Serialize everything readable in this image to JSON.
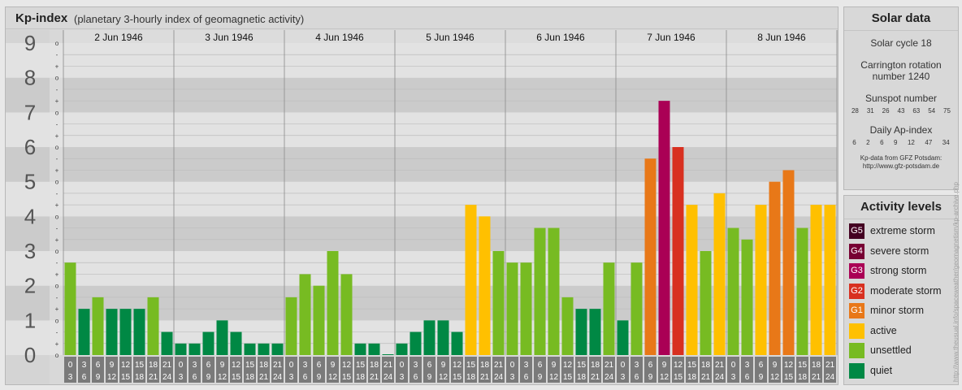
{
  "header": {
    "title": "Kp-index",
    "subtitle": "(planetary 3-hourly index of geomagnetic activity)"
  },
  "colors": {
    "quiet": "#008844",
    "unsettled": "#77bb22",
    "active": "#ffc000",
    "minor_storm": "#e87818",
    "moderate_storm": "#d83020",
    "strong_storm": "#aa0055",
    "severe_storm": "#770033",
    "extreme_storm": "#440022"
  },
  "chart_data": {
    "type": "bar",
    "title": "Kp-index",
    "ylim": [
      0,
      9
    ],
    "y_ticks": [
      "0",
      "1",
      "2",
      "3",
      "4",
      "5",
      "6",
      "7",
      "8",
      "9"
    ],
    "y_subticks": [
      "+",
      "o",
      "-"
    ],
    "days": [
      "2 Jun 1946",
      "3 Jun 1946",
      "4 Jun 1946",
      "5 Jun 1946",
      "6 Jun 1946",
      "7 Jun 1946",
      "8 Jun 1946"
    ],
    "hour_labels_top": [
      "0",
      "3",
      "6",
      "9",
      "12",
      "15",
      "18",
      "21"
    ],
    "hour_labels_bottom": [
      "3",
      "6",
      "9",
      "12",
      "15",
      "18",
      "21",
      "24"
    ],
    "values": [
      [
        2.667,
        1.333,
        1.667,
        1.333,
        1.333,
        1.333,
        1.667,
        0.667
      ],
      [
        0.333,
        0.333,
        0.667,
        1.0,
        0.667,
        0.333,
        0.333,
        0.333
      ],
      [
        1.667,
        2.333,
        2.0,
        3.0,
        2.333,
        0.333,
        0.333,
        0.0
      ],
      [
        0.333,
        0.667,
        1.0,
        1.0,
        0.667,
        4.333,
        4.0,
        3.0
      ],
      [
        2.667,
        2.667,
        3.667,
        3.667,
        1.667,
        1.333,
        1.333,
        2.667
      ],
      [
        1.0,
        2.667,
        5.667,
        7.333,
        6.0,
        4.333,
        3.0,
        4.667
      ],
      [
        3.667,
        3.333,
        4.333,
        5.0,
        5.333,
        3.667,
        4.333,
        4.333
      ]
    ]
  },
  "solar": {
    "title": "Solar data",
    "cycle": "Solar cycle 18",
    "carrington_line1": "Carrington rotation",
    "carrington_line2": "number 1240",
    "sunspot_label": "Sunspot number",
    "sunspot_values": [
      "28",
      "31",
      "26",
      "43",
      "63",
      "54",
      "75"
    ],
    "ap_label": "Daily Ap-index",
    "ap_values": [
      "6",
      "2",
      "6",
      "9",
      "12",
      "47",
      "34"
    ],
    "source_line1": "Kp-data from GFZ Potsdam:",
    "source_line2": "http://www.gfz-potsdam.de"
  },
  "levels": {
    "title": "Activity levels",
    "items": [
      {
        "badge": "G5",
        "label": "extreme storm",
        "color": "#440022"
      },
      {
        "badge": "G4",
        "label": "severe storm",
        "color": "#770033"
      },
      {
        "badge": "G3",
        "label": "strong storm",
        "color": "#aa0055"
      },
      {
        "badge": "G2",
        "label": "moderate storm",
        "color": "#d83020"
      },
      {
        "badge": "G1",
        "label": "minor storm",
        "color": "#e87818"
      },
      {
        "badge": "",
        "label": "active",
        "color": "#ffc000"
      },
      {
        "badge": "",
        "label": "unsettled",
        "color": "#77bb22"
      },
      {
        "badge": "",
        "label": "quiet",
        "color": "#008844"
      }
    ]
  },
  "credit": "http://www.theusual.info/spaceweather/geomagnetism/kp-archive.php"
}
